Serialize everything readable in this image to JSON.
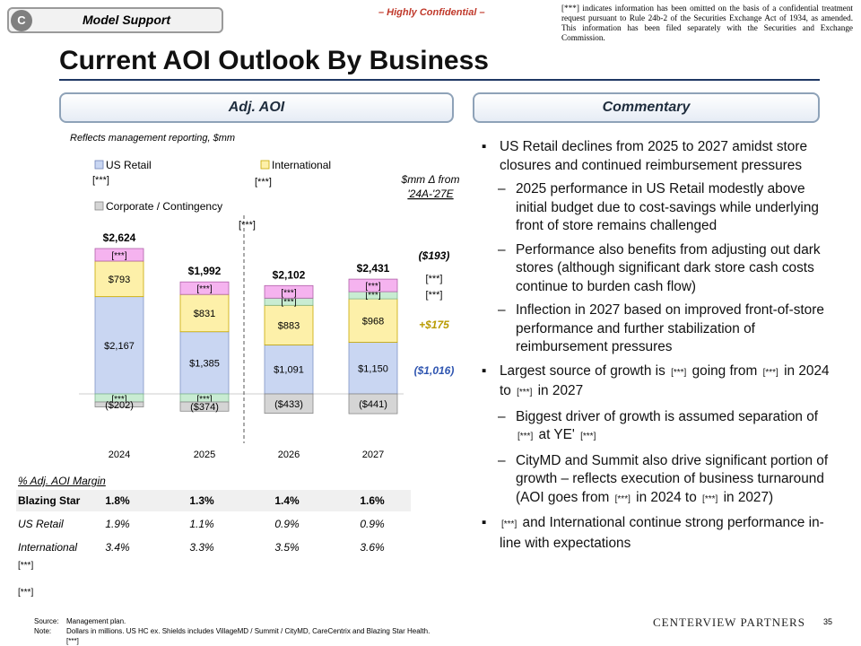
{
  "header": {
    "tab_letter": "C",
    "tab_label": "Model Support",
    "confidential": "– Highly Confidential –",
    "disclaimer": "[***] indicates information has been omitted on the basis of a confidential treatment request pursuant to Rule 24b-2 of the Securities Exchange Act of 1934, as amended. This information has been filed separately with the Securities and Exchange Commission."
  },
  "title": "Current AOI Outlook By Business",
  "left_header": "Adj. AOI",
  "right_header": "Commentary",
  "chart_subtitle": "Reflects management reporting, $mm",
  "colors": {
    "us_retail": "#c9d6f2",
    "international": "#fdf0a9",
    "corporate": "#d5d5d5",
    "pink": "#f5b3ef",
    "green": "#c8ecd2"
  },
  "chart_data": {
    "type": "bar",
    "categories": [
      "2024",
      "2025",
      "2026",
      "2027"
    ],
    "legend": [
      "US Retail",
      "International",
      "Corporate / Contingency"
    ],
    "legend_notes": [
      "[***]",
      "[***]",
      "[***]"
    ],
    "series": [
      {
        "name": "US Retail",
        "values": [
          2167,
          1385,
          1091,
          1150
        ],
        "labels": [
          "$2,167",
          "$1,385",
          "$1,091",
          "$1,150"
        ]
      },
      {
        "name": "International",
        "values": [
          793,
          831,
          883,
          968
        ],
        "labels": [
          "$793",
          "$831",
          "$883",
          "$968"
        ]
      },
      {
        "name": "[***]",
        "labels": [
          "[***]",
          "[***]",
          "[***]",
          "[***]"
        ]
      },
      {
        "name": "[***]",
        "labels": [
          "",
          "",
          "[***]",
          "[***]"
        ]
      },
      {
        "name": "Corporate / Contingency",
        "values": [
          -202,
          -374,
          -433,
          -441
        ],
        "labels": [
          "($202)",
          "($374)",
          "($433)",
          "($441)"
        ]
      },
      {
        "name": "[***]",
        "labels": [
          "[***]",
          "[***]",
          "",
          ""
        ]
      }
    ],
    "totals": [
      2624,
      1992,
      2102,
      2431
    ],
    "total_labels": [
      "$2,624",
      "$1,992",
      "$2,102",
      "$2,431"
    ],
    "delta_header": [
      "$mm Δ from",
      "'24A-'27E"
    ],
    "deltas": [
      "($193)",
      "[***]",
      "[***]",
      "+$175",
      "($1,016)"
    ],
    "divider_note": "[***]"
  },
  "margin_table": {
    "title": "% Adj. AOI Margin",
    "rows": [
      {
        "label": "Blazing Star",
        "values": [
          "1.8%",
          "1.3%",
          "1.4%",
          "1.6%"
        ]
      },
      {
        "label": "US Retail",
        "values": [
          "1.9%",
          "1.1%",
          "0.9%",
          "0.9%"
        ]
      },
      {
        "label": "International",
        "values": [
          "3.4%",
          "3.3%",
          "3.5%",
          "3.6%"
        ]
      },
      {
        "label": "[***]",
        "values": [
          "",
          "",
          "",
          ""
        ]
      },
      {
        "label": "[***]",
        "values": [
          "",
          "",
          "",
          ""
        ]
      }
    ]
  },
  "commentary": {
    "b1": "US Retail declines from 2025 to 2027 amidst store closures and continued reimbursement pressures",
    "b1_s1": "2025 performance in US Retail modestly above initial budget due to cost-savings while underlying front of store remains challenged",
    "b1_s2": "Performance also benefits from adjusting out dark stores (although significant dark store cash costs continue to burden cash flow)",
    "b1_s3": "Inflection in 2027 based on improved front-of-store performance and further stabilization of reimbursement pressures",
    "b2": {
      "a": "Largest source of growth is",
      "r1": "[***]",
      "b": "going from",
      "r2": "[***]",
      "c": "in 2024 to",
      "r3": "[***]",
      "d": "in 2027"
    },
    "b2_s1": {
      "a": "Biggest driver of growth is assumed separation of",
      "r1": "[***]",
      "b": "at YE'",
      "r2": "[***]"
    },
    "b2_s2": {
      "a": "CityMD and Summit also drive significant portion of growth – reflects execution of business turnaround (AOI goes from",
      "r1": "[***]",
      "b": "in 2024 to",
      "r2": "[***]",
      "c": "in 2027)"
    },
    "b3": {
      "r1": "[***]",
      "a": "and International continue strong performance in-line with expectations"
    }
  },
  "footer": {
    "source_label": "Source:",
    "source": "Management plan.",
    "note_label": "Note:",
    "note": "Dollars in millions. US HC ex. Shields includes VillageMD / Summit / CityMD, CareCentrix and Blazing Star Health.",
    "note2": "[***]",
    "brand": "CENTERVIEW PARTNERS",
    "page": "35"
  }
}
